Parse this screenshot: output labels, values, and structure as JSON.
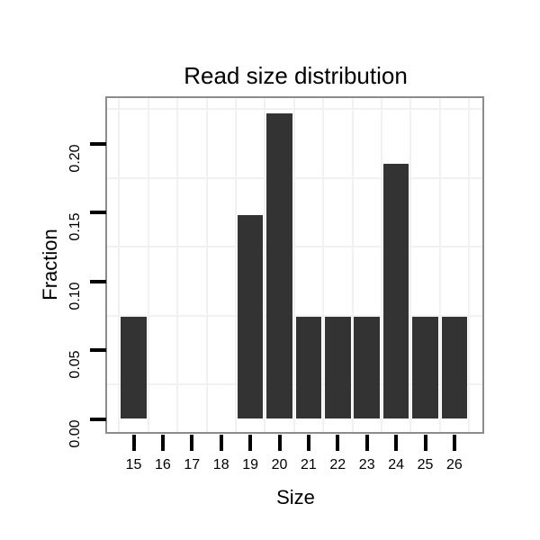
{
  "chart_data": {
    "type": "bar",
    "title": "Read size distribution",
    "xlabel": "Size",
    "ylabel": "Fraction",
    "categories": [
      15,
      16,
      17,
      18,
      19,
      20,
      21,
      22,
      23,
      24,
      25,
      26
    ],
    "values": [
      0.0741,
      0,
      0,
      0,
      0.1481,
      0.2222,
      0.0741,
      0.0741,
      0.0741,
      0.1852,
      0.0741,
      0.0741
    ],
    "ytick_values": [
      0.0,
      0.05,
      0.1,
      0.15,
      0.2
    ],
    "ytick_labels": [
      "0.00",
      "0.05",
      "0.10",
      "0.15",
      "0.20"
    ],
    "ylim": [
      -0.011,
      0.233
    ],
    "minor_gridlines_y": [
      0.025,
      0.075,
      0.125,
      0.175,
      0.225
    ],
    "minor_gridlines_x_at_half_steps": true,
    "grid": "minor gridlines only, light gray on white panel",
    "legend_position": "none",
    "bar_color": "#333333",
    "grid_color": "#f1f1f1",
    "panel_border_color": "#8c8c8c",
    "tick_color": "#000000",
    "text_color": "#000000"
  }
}
